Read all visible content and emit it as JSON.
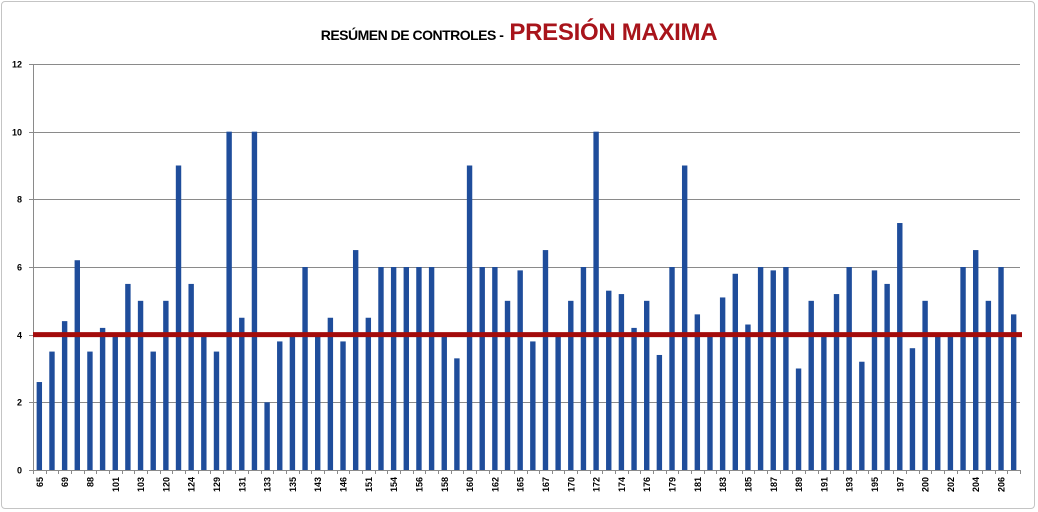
{
  "chart_data": {
    "type": "bar",
    "title": {
      "prefix": "RESÚMEN DE CONTROLES -",
      "main": "PRESIÓN MAXIMA"
    },
    "categories": [
      "65",
      "",
      "69",
      "",
      "88",
      "",
      "101",
      "",
      "103",
      "",
      "120",
      "",
      "124",
      "",
      "129",
      "",
      "131",
      "",
      "133",
      "",
      "135",
      "",
      "143",
      "",
      "146",
      "",
      "151",
      "",
      "154",
      "",
      "156",
      "",
      "158",
      "",
      "160",
      "",
      "162",
      "",
      "165",
      "",
      "167",
      "",
      "170",
      "",
      "172",
      "",
      "174",
      "",
      "176",
      "",
      "179",
      "",
      "181",
      "",
      "183",
      "",
      "185",
      "",
      "187",
      "",
      "189",
      "",
      "191",
      "",
      "193",
      "",
      "195",
      "",
      "197",
      "",
      "200",
      "",
      "202",
      "",
      "204",
      "",
      "206",
      ""
    ],
    "values": [
      2.6,
      3.5,
      4.4,
      6.2,
      3.5,
      4.2,
      4.0,
      5.5,
      5.0,
      3.5,
      5.0,
      9.0,
      5.5,
      4.0,
      3.5,
      10,
      4.5,
      10,
      2.0,
      3.8,
      4.0,
      6.0,
      4.0,
      4.5,
      3.8,
      6.5,
      4.5,
      6.0,
      6.0,
      6.0,
      6.0,
      6.0,
      4.0,
      3.3,
      9.0,
      6.0,
      6.0,
      5.0,
      5.9,
      3.8,
      6.5,
      4.0,
      5.0,
      6.0,
      10,
      5.3,
      5.2,
      4.2,
      5.0,
      3.4,
      6.0,
      9.0,
      4.6,
      4.0,
      5.1,
      5.8,
      4.3,
      6.0,
      5.9,
      6.0,
      3.0,
      5.0,
      4.0,
      5.2,
      6.0,
      3.2,
      5.9,
      5.5,
      7.3,
      3.6,
      5.0,
      4.0,
      4.0,
      6.0,
      6.5,
      5.0,
      6.0,
      4.6
    ],
    "ylim": [
      0,
      12
    ],
    "yticks": [
      0,
      2,
      4,
      6,
      8,
      10,
      12
    ],
    "reference_line": {
      "value": 4
    },
    "grid": true,
    "legend": "none",
    "colors": {
      "bars": "#1f4d9b",
      "reference_line": "#a30b0b",
      "title": "#000000",
      "title_accent": "#a8141b",
      "grid": "#8a8a8a"
    }
  }
}
